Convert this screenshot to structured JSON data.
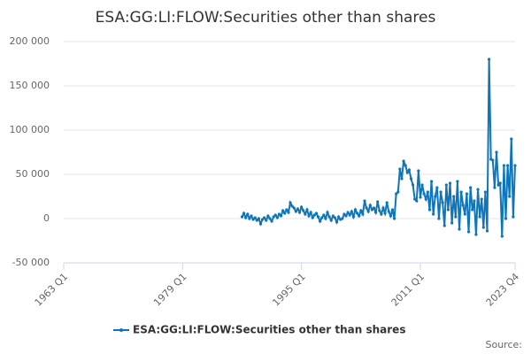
{
  "chart_data": {
    "type": "line",
    "title": "ESA:GG:LI:FLOW:Securities other than shares",
    "source": "Source:",
    "x": [
      "1987 Q1",
      "1987 Q2",
      "1987 Q3",
      "1987 Q4",
      "1988 Q1",
      "1988 Q2",
      "1988 Q3",
      "1988 Q4",
      "1989 Q1",
      "1989 Q2",
      "1989 Q3",
      "1989 Q4",
      "1990 Q1",
      "1990 Q2",
      "1990 Q3",
      "1990 Q4",
      "1991 Q1",
      "1991 Q2",
      "1991 Q3",
      "1991 Q4",
      "1992 Q1",
      "1992 Q2",
      "1992 Q3",
      "1992 Q4",
      "1993 Q1",
      "1993 Q2",
      "1993 Q3",
      "1993 Q4",
      "1994 Q1",
      "1994 Q2",
      "1994 Q3",
      "1994 Q4",
      "1995 Q1",
      "1995 Q2",
      "1995 Q3",
      "1995 Q4",
      "1996 Q1",
      "1996 Q2",
      "1996 Q3",
      "1996 Q4",
      "1997 Q1",
      "1997 Q2",
      "1997 Q3",
      "1997 Q4",
      "1998 Q1",
      "1998 Q2",
      "1998 Q3",
      "1998 Q4",
      "1999 Q1",
      "1999 Q2",
      "1999 Q3",
      "1999 Q4",
      "2000 Q1",
      "2000 Q2",
      "2000 Q3",
      "2000 Q4",
      "2001 Q1",
      "2001 Q2",
      "2001 Q3",
      "2001 Q4",
      "2002 Q1",
      "2002 Q2",
      "2002 Q3",
      "2002 Q4",
      "2003 Q1",
      "2003 Q2",
      "2003 Q3",
      "2003 Q4",
      "2004 Q1",
      "2004 Q2",
      "2004 Q3",
      "2004 Q4",
      "2005 Q1",
      "2005 Q2",
      "2005 Q3",
      "2005 Q4",
      "2006 Q1",
      "2006 Q2",
      "2006 Q3",
      "2006 Q4",
      "2007 Q1",
      "2007 Q2",
      "2007 Q3",
      "2007 Q4",
      "2008 Q1",
      "2008 Q2",
      "2008 Q3",
      "2008 Q4",
      "2009 Q1",
      "2009 Q2",
      "2009 Q3",
      "2009 Q4",
      "2010 Q1",
      "2010 Q2",
      "2010 Q3",
      "2010 Q4",
      "2011 Q1",
      "2011 Q2",
      "2011 Q3",
      "2011 Q4",
      "2012 Q1",
      "2012 Q2",
      "2012 Q3",
      "2012 Q4",
      "2013 Q1",
      "2013 Q2",
      "2013 Q3",
      "2013 Q4",
      "2014 Q1",
      "2014 Q2",
      "2014 Q3",
      "2014 Q4",
      "2015 Q1",
      "2015 Q2",
      "2015 Q3",
      "2015 Q4",
      "2016 Q1",
      "2016 Q2",
      "2016 Q3",
      "2016 Q4",
      "2017 Q1",
      "2017 Q2",
      "2017 Q3",
      "2017 Q4",
      "2018 Q1",
      "2018 Q2",
      "2018 Q3",
      "2018 Q4",
      "2019 Q1",
      "2019 Q2",
      "2019 Q3",
      "2019 Q4",
      "2020 Q1",
      "2020 Q2",
      "2020 Q3",
      "2020 Q4",
      "2021 Q1",
      "2021 Q2",
      "2021 Q3",
      "2021 Q4",
      "2022 Q1",
      "2022 Q2",
      "2022 Q3",
      "2022 Q4",
      "2023 Q1",
      "2023 Q2",
      "2023 Q3",
      "2023 Q4"
    ],
    "series": [
      {
        "name": "ESA:GG:LI:FLOW:Securities other than shares",
        "color": "#0f75b8",
        "values": [
          2000,
          6000,
          1000,
          5000,
          0,
          3000,
          -1000,
          1000,
          -2000,
          0,
          -6000,
          -1000,
          1000,
          -2000,
          3000,
          0,
          -3000,
          2000,
          4000,
          1000,
          5000,
          3000,
          9000,
          6000,
          10000,
          7000,
          18000,
          14000,
          12000,
          8000,
          11000,
          7000,
          13000,
          9000,
          5000,
          10000,
          3000,
          7000,
          1000,
          4000,
          6000,
          2000,
          -3000,
          1000,
          4000,
          0,
          7000,
          2000,
          -2000,
          3000,
          1000,
          -4000,
          2000,
          -1000,
          0,
          5000,
          3000,
          7000,
          4000,
          8000,
          2000,
          10000,
          6000,
          3000,
          9000,
          5000,
          20000,
          12000,
          8000,
          15000,
          10000,
          12000,
          7000,
          19000,
          9000,
          5000,
          12000,
          6000,
          18000,
          8000,
          3000,
          10000,
          0,
          28000,
          30000,
          56000,
          45000,
          65000,
          60000,
          52000,
          55000,
          45000,
          38000,
          22000,
          20000,
          54000,
          24000,
          38000,
          28000,
          22000,
          30000,
          10000,
          42000,
          5000,
          25000,
          35000,
          0,
          30000,
          18000,
          -8000,
          38000,
          10000,
          40000,
          -5000,
          25000,
          2000,
          42000,
          -12000,
          30000,
          15000,
          5000,
          28000,
          -15000,
          35000,
          10000,
          20000,
          -18000,
          33000,
          2000,
          22000,
          -10000,
          30000,
          -14000,
          180000,
          67000,
          66000,
          35000,
          75000,
          38000,
          40000,
          -20000,
          60000,
          0,
          60000,
          25000,
          90000,
          2000,
          60000
        ]
      }
    ],
    "xlim": [
      "1963 Q1",
      "2023 Q4"
    ],
    "xticks": [
      "1963 Q1",
      "1979 Q1",
      "1995 Q1",
      "2011 Q1",
      "2023 Q4"
    ],
    "ylim": [
      -50000,
      200000
    ],
    "yticks": [
      {
        "value": -50000,
        "label": "-50 000"
      },
      0,
      {
        "value": 50000,
        "label": "50 000"
      },
      {
        "value": 100000,
        "label": "100 000"
      },
      {
        "value": 150000,
        "label": "150 000"
      },
      {
        "value": 200000,
        "label": "200 000"
      }
    ],
    "grid": true,
    "legend": "bottom"
  }
}
